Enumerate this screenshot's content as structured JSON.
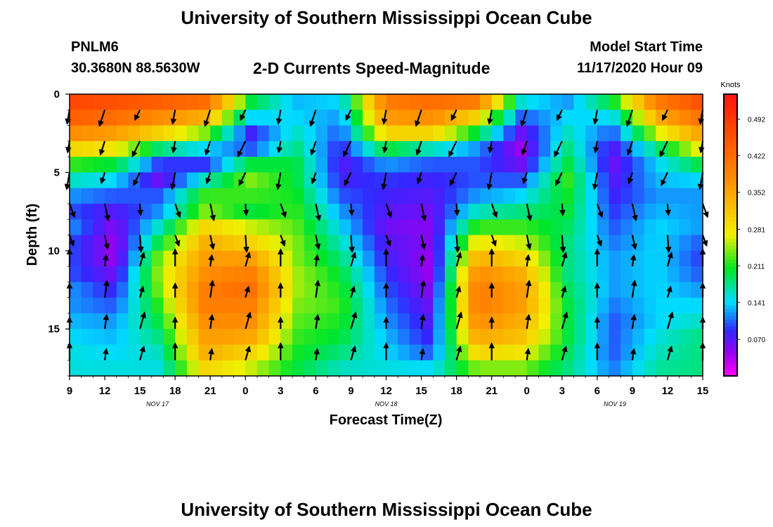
{
  "header": {
    "title": "University of Southern Mississippi Ocean Cube",
    "station_id": "PNLM6",
    "station_coords": "30.3680N 88.5630W",
    "plot_title": "2-D Currents Speed-Magnitude",
    "model_start_label": "Model Start Time",
    "model_start_value": "11/17/2020 Hour 09"
  },
  "footer": {
    "title": "University of Southern Mississippi Ocean Cube"
  },
  "chart_data": {
    "type": "heatmap",
    "xlabel": "Forecast Time(Z)",
    "ylabel": "Depth (ft)",
    "x_tick_labels": [
      "9",
      "12",
      "15",
      "18",
      "21",
      "0",
      "3",
      "6",
      "9",
      "12",
      "15",
      "18",
      "21",
      "0",
      "3",
      "6",
      "9",
      "12",
      "15"
    ],
    "x_hours_since_start": [
      0,
      3,
      6,
      9,
      12,
      15,
      18,
      21,
      24,
      27,
      30,
      33,
      36,
      39,
      42,
      45,
      48,
      51,
      54
    ],
    "date_labels": [
      {
        "text": "NOV 17",
        "at_hour": 7.5
      },
      {
        "text": "NOV 18",
        "at_hour": 27
      },
      {
        "text": "NOV 19",
        "at_hour": 46.5
      }
    ],
    "y_ticks": [
      0,
      5,
      10,
      15
    ],
    "ylim": [
      0,
      18
    ],
    "xlim": [
      0,
      54
    ],
    "colorbar": {
      "title": "Knots",
      "labels": [
        "0.492",
        "0.422",
        "0.352",
        "0.281",
        "0.211",
        "0.141",
        "0.070"
      ],
      "values": [
        0.492,
        0.422,
        0.352,
        0.281,
        0.211,
        0.141,
        0.07
      ],
      "range": [
        0,
        0.54
      ]
    },
    "column_speed_profiles": [
      [
        0.47,
        0.44,
        0.38,
        0.3,
        0.22,
        0.16,
        0.12,
        0.1,
        0.12,
        0.1,
        0.1,
        0.1,
        0.12,
        0.12,
        0.13,
        0.14,
        0.15,
        0.15
      ],
      [
        0.46,
        0.42,
        0.36,
        0.28,
        0.2,
        0.14,
        0.1,
        0.07,
        0.05,
        0.04,
        0.04,
        0.06,
        0.08,
        0.1,
        0.12,
        0.13,
        0.14,
        0.15
      ],
      [
        0.44,
        0.38,
        0.3,
        0.18,
        0.09,
        0.06,
        0.1,
        0.12,
        0.16,
        0.2,
        0.24,
        0.25,
        0.24,
        0.22,
        0.2,
        0.18,
        0.16,
        0.15
      ],
      [
        0.42,
        0.34,
        0.24,
        0.14,
        0.09,
        0.16,
        0.22,
        0.24,
        0.3,
        0.34,
        0.36,
        0.38,
        0.4,
        0.4,
        0.38,
        0.36,
        0.34,
        0.3
      ],
      [
        0.2,
        0.14,
        0.08,
        0.1,
        0.2,
        0.24,
        0.22,
        0.2,
        0.26,
        0.3,
        0.36,
        0.4,
        0.42,
        0.4,
        0.38,
        0.35,
        0.3,
        0.26
      ],
      [
        0.13,
        0.14,
        0.16,
        0.18,
        0.2,
        0.2,
        0.21,
        0.22,
        0.23,
        0.24,
        0.24,
        0.25,
        0.25,
        0.24,
        0.23,
        0.22,
        0.21,
        0.2
      ],
      [
        0.14,
        0.12,
        0.1,
        0.08,
        0.07,
        0.08,
        0.1,
        0.12,
        0.14,
        0.16,
        0.18,
        0.2,
        0.21,
        0.22,
        0.21,
        0.2,
        0.18,
        0.16
      ],
      [
        0.4,
        0.36,
        0.3,
        0.2,
        0.12,
        0.09,
        0.08,
        0.07,
        0.06,
        0.07,
        0.08,
        0.09,
        0.1,
        0.11,
        0.12,
        0.13,
        0.14,
        0.15
      ],
      [
        0.42,
        0.38,
        0.3,
        0.16,
        0.1,
        0.08,
        0.07,
        0.06,
        0.05,
        0.05,
        0.04,
        0.04,
        0.05,
        0.06,
        0.07,
        0.08,
        0.1,
        0.14
      ],
      [
        0.4,
        0.3,
        0.2,
        0.12,
        0.1,
        0.1,
        0.12,
        0.16,
        0.22,
        0.28,
        0.34,
        0.38,
        0.4,
        0.4,
        0.38,
        0.35,
        0.3,
        0.24
      ],
      [
        0.15,
        0.1,
        0.06,
        0.04,
        0.06,
        0.1,
        0.14,
        0.18,
        0.22,
        0.26,
        0.3,
        0.34,
        0.36,
        0.36,
        0.34,
        0.32,
        0.28,
        0.24
      ],
      [
        0.12,
        0.14,
        0.16,
        0.18,
        0.2,
        0.22,
        0.21,
        0.2,
        0.19,
        0.18,
        0.18,
        0.18,
        0.19,
        0.2,
        0.2,
        0.2,
        0.19,
        0.18
      ],
      [
        0.2,
        0.14,
        0.1,
        0.07,
        0.06,
        0.07,
        0.08,
        0.09,
        0.1,
        0.11,
        0.12,
        0.12,
        0.12,
        0.11,
        0.1,
        0.1,
        0.1,
        0.11
      ],
      [
        0.4,
        0.34,
        0.26,
        0.18,
        0.14,
        0.13,
        0.12,
        0.13,
        0.14,
        0.14,
        0.14,
        0.14,
        0.14,
        0.14,
        0.14,
        0.15,
        0.16,
        0.17
      ],
      [
        0.46,
        0.42,
        0.36,
        0.28,
        0.2,
        0.14,
        0.12,
        0.12,
        0.12,
        0.1,
        0.09,
        0.1,
        0.12,
        0.14,
        0.16,
        0.18,
        0.18,
        0.18
      ]
    ]
  }
}
